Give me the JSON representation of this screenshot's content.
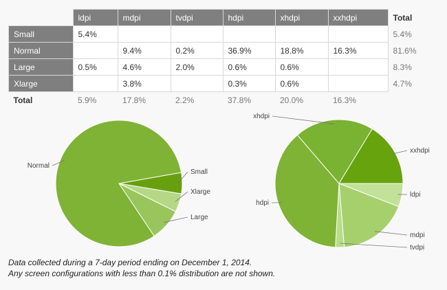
{
  "table": {
    "columns": [
      "ldpi",
      "mdpi",
      "tvdpi",
      "hdpi",
      "xhdpi",
      "xxhdpi"
    ],
    "total_label": "Total",
    "rows": [
      {
        "label": "Small",
        "cells": [
          "5.4%",
          "",
          "",
          "",
          "",
          ""
        ],
        "total": "5.4%"
      },
      {
        "label": "Normal",
        "cells": [
          "",
          "9.4%",
          "0.2%",
          "36.9%",
          "18.8%",
          "16.3%"
        ],
        "total": "81.6%"
      },
      {
        "label": "Large",
        "cells": [
          "0.5%",
          "4.6%",
          "2.0%",
          "0.6%",
          "0.6%",
          ""
        ],
        "total": "8.3%"
      },
      {
        "label": "Xlarge",
        "cells": [
          "",
          "3.8%",
          "",
          "0.3%",
          "0.6%",
          ""
        ],
        "total": "4.7%"
      }
    ],
    "totals": {
      "label": "Total",
      "cells": [
        "5.9%",
        "17.8%",
        "2.2%",
        "37.8%",
        "20.0%",
        "16.3%"
      ]
    }
  },
  "chart_data": [
    {
      "type": "pie",
      "labels": [
        "Small",
        "Xlarge",
        "Large",
        "Normal"
      ],
      "values": [
        5.4,
        4.7,
        8.3,
        81.6
      ],
      "colors": [
        "#689f0f",
        "#b4d885",
        "#99c65c",
        "#7fb335"
      ]
    },
    {
      "type": "pie",
      "labels": [
        "ldpi",
        "mdpi",
        "tvdpi",
        "hdpi",
        "xhdpi",
        "xxhdpi"
      ],
      "values": [
        5.9,
        17.8,
        2.2,
        37.8,
        20.0,
        16.3
      ],
      "colors": [
        "#c2e199",
        "#a6d06c",
        "#b8dc89",
        "#7fb335",
        "#7ab231",
        "#66a30c"
      ]
    }
  ],
  "footnote": {
    "line1": "Data collected during a 7-day period ending on December 1, 2014.",
    "line2": "Any screen configurations with less than 0.1% distribution are not shown."
  }
}
